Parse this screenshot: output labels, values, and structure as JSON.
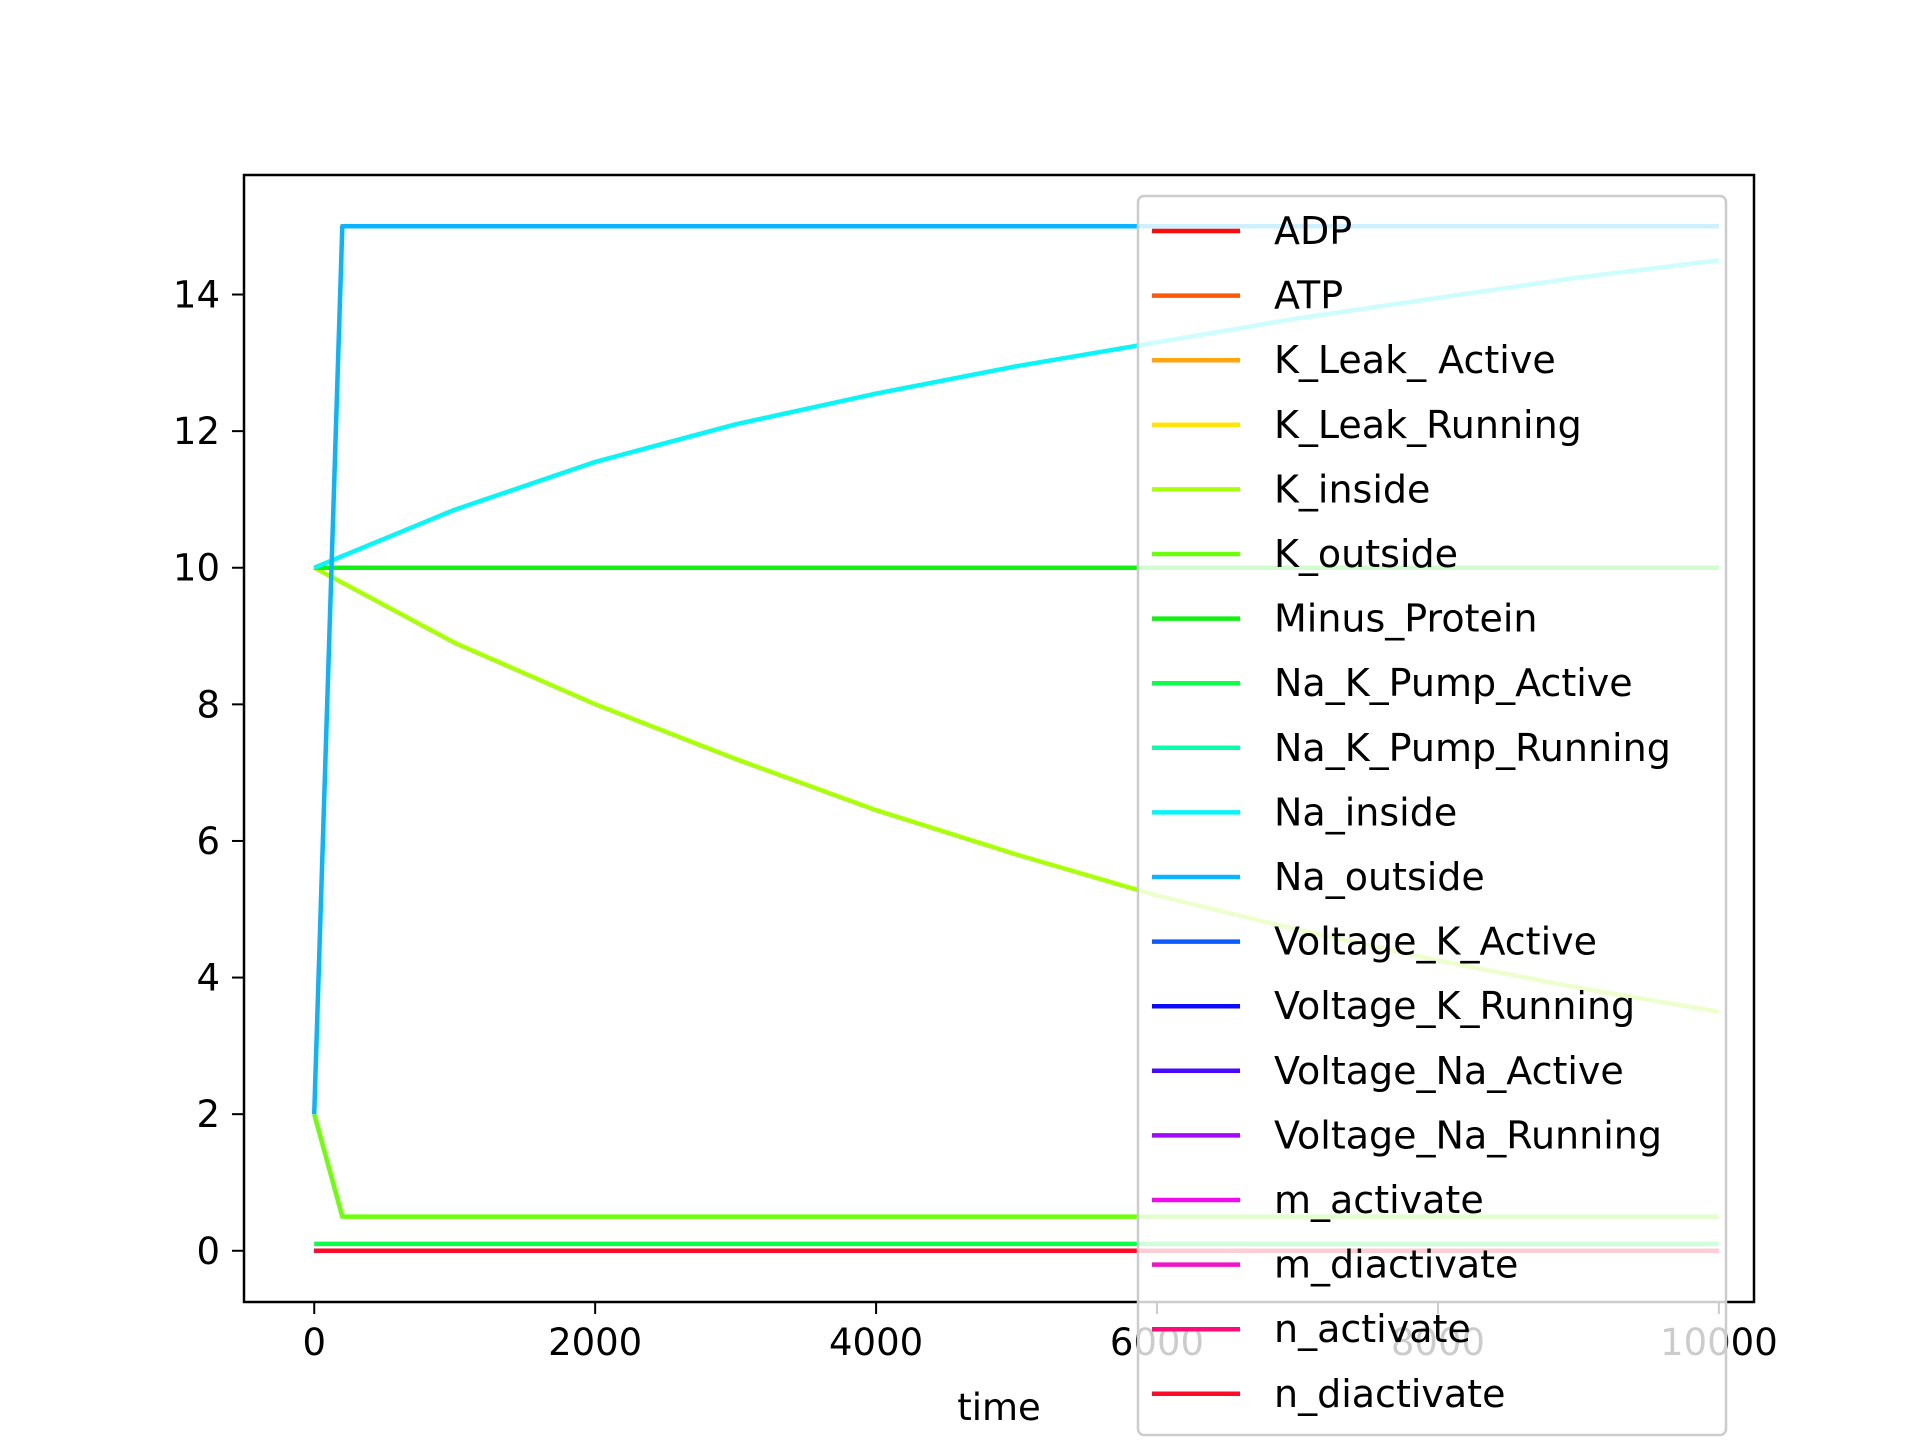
{
  "chart_data": {
    "type": "line",
    "title": "",
    "xlabel": "time",
    "ylabel": "",
    "xlim": [
      -500,
      10250
    ],
    "ylim": [
      -0.75,
      15.75
    ],
    "xticks": [
      0,
      2000,
      4000,
      6000,
      8000,
      10000
    ],
    "xtick_labels": [
      "0",
      "2000",
      "4000",
      "6000",
      "8000",
      "10000"
    ],
    "yticks": [
      0,
      2,
      4,
      6,
      8,
      10,
      12,
      14
    ],
    "ytick_labels": [
      "0",
      "2",
      "4",
      "6",
      "8",
      "10",
      "12",
      "14"
    ],
    "grid": false,
    "legend_position": "right",
    "series": [
      {
        "name": "ADP",
        "color": "#ff0a0a",
        "x": [
          0,
          10000
        ],
        "y": [
          0,
          0
        ]
      },
      {
        "name": "ATP",
        "color": "#ff5a0a",
        "x": [
          0,
          10000
        ],
        "y": [
          0,
          0
        ]
      },
      {
        "name": "K_Leak_ Active",
        "color": "#ffa50f",
        "x": [
          0,
          10000
        ],
        "y": [
          0,
          0
        ]
      },
      {
        "name": "K_Leak_Running",
        "color": "#ffe60a",
        "x": [
          0,
          10000
        ],
        "y": [
          0,
          0
        ]
      },
      {
        "name": "K_inside",
        "color": "#aaff0a",
        "x": [
          0,
          1000,
          2000,
          3000,
          4000,
          5000,
          6000,
          7000,
          8000,
          9000,
          10000
        ],
        "y": [
          10.0,
          8.9,
          8.0,
          7.2,
          6.45,
          5.8,
          5.2,
          4.7,
          4.25,
          3.85,
          3.5
        ]
      },
      {
        "name": "K_outside",
        "color": "#6eff0a",
        "x": [
          0,
          200,
          10000
        ],
        "y": [
          2.0,
          0.5,
          0.5
        ]
      },
      {
        "name": "Minus_Protein",
        "color": "#14f014",
        "x": [
          0,
          10000
        ],
        "y": [
          10.0,
          10.0
        ]
      },
      {
        "name": "Na_K_Pump_Active",
        "color": "#0aff46",
        "x": [
          0,
          10000
        ],
        "y": [
          0.1,
          0.1
        ]
      },
      {
        "name": "Na_K_Pump_Running",
        "color": "#0affaa",
        "x": [
          0,
          10000
        ],
        "y": [
          0,
          0
        ]
      },
      {
        "name": "Na_inside",
        "color": "#0af5f5",
        "x": [
          0,
          1000,
          2000,
          3000,
          4000,
          5000,
          6000,
          7000,
          8000,
          9000,
          10000
        ],
        "y": [
          10.0,
          10.85,
          11.55,
          12.1,
          12.55,
          12.95,
          13.3,
          13.65,
          13.95,
          14.25,
          14.5
        ]
      },
      {
        "name": "Na_outside",
        "color": "#0ab4ff",
        "x": [
          0,
          200,
          10000
        ],
        "y": [
          2.0,
          15.0,
          15.0
        ]
      },
      {
        "name": "Voltage_K_Active",
        "color": "#0a5aff",
        "x": [
          0,
          10000
        ],
        "y": [
          0,
          0
        ]
      },
      {
        "name": "Voltage_K_Running",
        "color": "#0a0aff",
        "x": [
          0,
          10000
        ],
        "y": [
          0,
          0
        ]
      },
      {
        "name": "Voltage_Na_Active",
        "color": "#460aff",
        "x": [
          0,
          10000
        ],
        "y": [
          0,
          0
        ]
      },
      {
        "name": "Voltage_Na_Running",
        "color": "#a00aff",
        "x": [
          0,
          10000
        ],
        "y": [
          0,
          0
        ]
      },
      {
        "name": "m_activate",
        "color": "#f00af0",
        "x": [
          0,
          10000
        ],
        "y": [
          0,
          0
        ]
      },
      {
        "name": "m_diactivate",
        "color": "#f014c8",
        "x": [
          0,
          10000
        ],
        "y": [
          0,
          0
        ]
      },
      {
        "name": "n_activate",
        "color": "#ff0a78",
        "x": [
          0,
          10000
        ],
        "y": [
          0,
          0
        ]
      },
      {
        "name": "n_diactivate",
        "color": "#ff0a28",
        "x": [
          0,
          10000
        ],
        "y": [
          0,
          0
        ]
      }
    ]
  }
}
